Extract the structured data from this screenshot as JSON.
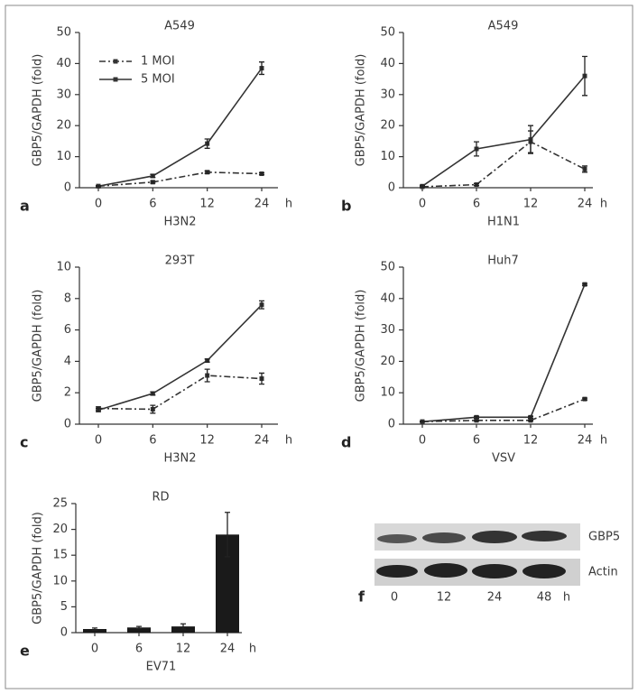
{
  "chart_data": [
    {
      "type": "line",
      "panel": "a",
      "title": "A549",
      "xlabel": "H3N2",
      "ylabel": "GBP5/GAPDH (fold)",
      "x_unit": "h",
      "categories": [
        "0",
        "6",
        "12",
        "24"
      ],
      "ylim": [
        0,
        50
      ],
      "yticks": [
        0,
        10,
        20,
        30,
        40,
        50
      ],
      "legend": "upper left",
      "series": [
        {
          "name": "1 MOI",
          "color": "#333333",
          "style": "dashdot",
          "values": [
            0.5,
            1.8,
            5,
            4.5
          ],
          "errors": [
            0.2,
            0.3,
            0.4,
            0.3
          ]
        },
        {
          "name": "5 MOI",
          "color": "#333333",
          "style": "solid",
          "values": [
            0.5,
            3.8,
            14.2,
            38.5
          ],
          "errors": [
            0.2,
            0.5,
            1.5,
            2
          ]
        }
      ]
    },
    {
      "type": "line",
      "panel": "b",
      "title": "A549",
      "xlabel": "H1N1",
      "ylabel": "GBP5/GAPDH (fold)",
      "x_unit": "h",
      "categories": [
        "0",
        "6",
        "12",
        "24"
      ],
      "ylim": [
        0,
        50
      ],
      "yticks": [
        0,
        10,
        20,
        30,
        40,
        50
      ],
      "series": [
        {
          "color": "#333333",
          "style": "dashdot",
          "values": [
            0.3,
            1,
            14.8,
            6
          ],
          "errors": [
            0.2,
            0.3,
            3.5,
            1
          ]
        },
        {
          "color": "#333333",
          "style": "solid",
          "values": [
            0.5,
            12.5,
            15.5,
            36
          ],
          "errors": [
            0.3,
            2.3,
            4.5,
            6.3
          ]
        }
      ]
    },
    {
      "type": "line",
      "panel": "c",
      "title": "293T",
      "xlabel": "H3N2",
      "ylabel": "GBP5/GAPDH (fold)",
      "x_unit": "h",
      "categories": [
        "0",
        "6",
        "12",
        "24"
      ],
      "ylim": [
        0,
        10
      ],
      "yticks": [
        0,
        2,
        4,
        6,
        8,
        10
      ],
      "series": [
        {
          "color": "#333333",
          "style": "dashdot",
          "values": [
            1,
            0.95,
            3.1,
            2.9
          ],
          "errors": [
            0.1,
            0.25,
            0.4,
            0.35
          ]
        },
        {
          "color": "#333333",
          "style": "solid",
          "values": [
            0.9,
            1.95,
            4.05,
            7.6
          ],
          "errors": [
            0.1,
            0.1,
            0.1,
            0.25
          ]
        }
      ]
    },
    {
      "type": "line",
      "panel": "d",
      "title": "Huh7",
      "xlabel": "VSV",
      "ylabel": "GBP5/GAPDH (fold)",
      "x_unit": "h",
      "categories": [
        "0",
        "6",
        "12",
        "24"
      ],
      "ylim": [
        0,
        50
      ],
      "yticks": [
        0,
        10,
        20,
        30,
        40,
        50
      ],
      "series": [
        {
          "color": "#333333",
          "style": "dashdot",
          "values": [
            0.8,
            1.2,
            1.2,
            8
          ],
          "errors": [
            0.1,
            0.2,
            0.2,
            0.3
          ]
        },
        {
          "color": "#333333",
          "style": "solid",
          "values": [
            0.8,
            2.2,
            2.2,
            44.5
          ],
          "errors": [
            0.1,
            0.3,
            0.3,
            0.3
          ]
        }
      ]
    },
    {
      "type": "bar",
      "panel": "e",
      "title": "RD",
      "xlabel": "EV71",
      "ylabel": "GBP5/GAPDH (fold)",
      "x_unit": "h",
      "categories": [
        "0",
        "6",
        "12",
        "24"
      ],
      "ylim": [
        0,
        25
      ],
      "yticks": [
        0,
        5,
        10,
        15,
        20,
        25
      ],
      "color": "#1a1a1a",
      "values": [
        0.7,
        1,
        1.2,
        19
      ],
      "errors": [
        0.2,
        0.2,
        0.5,
        4.3
      ]
    }
  ],
  "blot": {
    "panel": "f",
    "rows": [
      "GBP5",
      "Actin"
    ],
    "lanes": [
      "0",
      "12",
      "24",
      "48"
    ],
    "unit": "h"
  }
}
